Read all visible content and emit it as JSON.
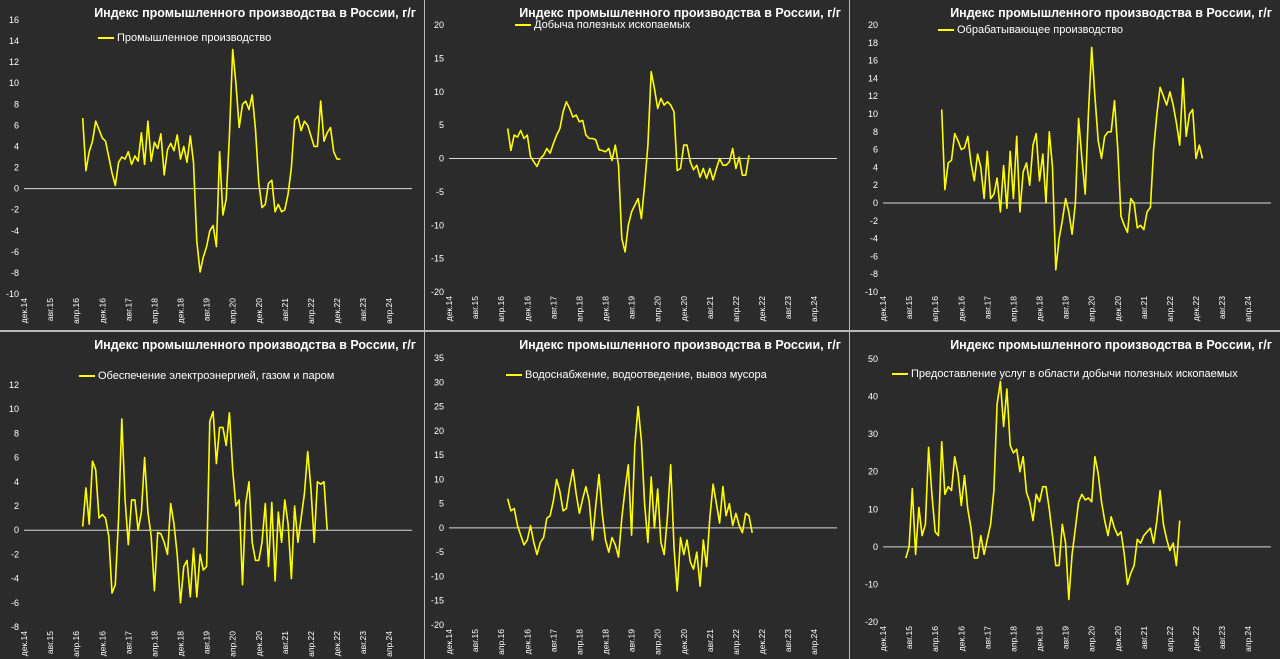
{
  "chart_data": [
    {
      "type": "line",
      "title": "Индекс промышленного производства в России, г/г",
      "x_tick_labels": [
        "дек.14",
        "авг.15",
        "апр.16",
        "дек.16",
        "авг.17",
        "апр.18",
        "дек.18",
        "авг.19",
        "апр.20",
        "дек.20",
        "авг.21",
        "апр.22",
        "дек.22",
        "авг.23",
        "апр.24"
      ],
      "x_range": [
        "2014-12",
        "2024-11"
      ],
      "ylim": [
        -10,
        16
      ],
      "ystep": 2,
      "grid": false,
      "legend": "top-left",
      "series": [
        {
          "name": "Промышленное производство",
          "color": "#ffff00",
          "x_start": "2016-06",
          "values": [
            6.7,
            1.7,
            3.5,
            4.5,
            6.4,
            5.6,
            4.8,
            4.5,
            3,
            1.5,
            0.3,
            2.5,
            3,
            2.8,
            3.5,
            2.3,
            3.1,
            2.6,
            5.3,
            2.3,
            6.4,
            2.6,
            4.4,
            3.8,
            5.2,
            1.3,
            3.7,
            4.3,
            3.6,
            5.1,
            2.8,
            4.0,
            2.5,
            5.0,
            2.5,
            -5,
            -7.9,
            -6.5,
            -5.5,
            -4.0,
            -3.5,
            -5.5,
            3.5,
            -2.5,
            -1,
            5,
            13.2,
            10,
            5.8,
            8,
            8.3,
            7.5,
            8.9,
            5.6,
            0.5,
            -1.8,
            -1.5,
            0.5,
            0.8,
            -2.2,
            -1.5,
            -2.2,
            -2,
            -0.5,
            2,
            6.5,
            6.9,
            5.5,
            6.4,
            6.0,
            5.0,
            4.0,
            4.0,
            8.3,
            4.5,
            5.3,
            5.8,
            3.5,
            2.8,
            2.8
          ]
        }
      ]
    },
    {
      "type": "line",
      "title": "Индекс промышленного производства в России, г/г",
      "x_tick_labels": [
        "дек.14",
        "авг.15",
        "апр.16",
        "дек.16",
        "авг.17",
        "апр.18",
        "дек.18",
        "авг.19",
        "апр.20",
        "дек.20",
        "авг.21",
        "апр.22",
        "дек.22",
        "авг.23",
        "апр.24"
      ],
      "x_range": [
        "2014-12",
        "2024-11"
      ],
      "ylim": [
        -20,
        20
      ],
      "ystep": 5,
      "grid": false,
      "legend": "top-left",
      "series": [
        {
          "name": "Добыча полезных ископаемых",
          "color": "#ffff00",
          "x_start": "2016-06",
          "values": [
            4.5,
            1.2,
            3.5,
            3.2,
            4.2,
            3.0,
            3.5,
            0.3,
            -0.5,
            -1.2,
            0,
            0.5,
            1.5,
            0.8,
            2.2,
            3.5,
            4.5,
            7,
            8.5,
            7.5,
            6.2,
            6.5,
            5.5,
            5.7,
            3.5,
            3.0,
            3.0,
            2.8,
            1.3,
            1.2,
            1.0,
            1.5,
            -0.3,
            2.0,
            -1,
            -12,
            -14,
            -10,
            -8,
            -7,
            -6,
            -9,
            -4,
            2,
            13,
            10.5,
            7.5,
            9,
            8,
            8.5,
            8,
            7,
            -1.8,
            -1.5,
            2,
            2,
            -0.5,
            -1.7,
            -1,
            -2.8,
            -1.5,
            -3,
            -1.5,
            -3.2,
            -1.5,
            0,
            -1,
            -1,
            -0.5,
            1.5,
            -1.5,
            0.2,
            -2.5,
            -2.5,
            0.5
          ]
        }
      ]
    },
    {
      "type": "line",
      "title": "Индекс промышленного производства в России, г/г",
      "x_tick_labels": [
        "дек.14",
        "авг.15",
        "апр.16",
        "дек.16",
        "авг.17",
        "апр.18",
        "дек.18",
        "авг.19",
        "апр.20",
        "дек.20",
        "авг.21",
        "апр.22",
        "дек.22",
        "авг.23",
        "апр.24"
      ],
      "x_range": [
        "2014-12",
        "2024-11"
      ],
      "ylim": [
        -10,
        20
      ],
      "ystep": 2,
      "grid": false,
      "legend": "top-left",
      "series": [
        {
          "name": "Обрабатывающее производство",
          "color": "#ffff00",
          "x_start": "2016-06",
          "values": [
            10.5,
            1.5,
            4.5,
            4.8,
            7.8,
            7.0,
            6.0,
            6.2,
            7.5,
            4.5,
            2.5,
            5.5,
            4,
            0.5,
            5.8,
            0.5,
            1.0,
            2.8,
            -1.0,
            4.2,
            -0.6,
            5.8,
            0.5,
            7.5,
            -1.0,
            3.5,
            4.5,
            2.0,
            6.5,
            7.8,
            2.5,
            5.5,
            0,
            8,
            4,
            -7.5,
            -4,
            -2,
            0.5,
            -1,
            -3.5,
            0,
            9.5,
            5,
            1,
            10,
            17.5,
            12,
            7,
            5,
            7.5,
            8,
            8,
            11.5,
            6,
            -1.5,
            -2.5,
            -3.3,
            0.5,
            0,
            -2.8,
            -2.5,
            -3,
            -1,
            -0.5,
            6,
            10,
            13,
            12,
            11,
            12.5,
            11,
            9,
            6.5,
            14,
            7.5,
            10,
            10.5,
            5,
            6.5,
            5
          ]
        }
      ]
    },
    {
      "type": "line",
      "title": "Индекс промышленного производства в России, г/г",
      "x_tick_labels": [
        "дек.14",
        "авг.15",
        "апр.16",
        "дек.16",
        "авг.17",
        "апр.18",
        "дек.18",
        "авг.19",
        "апр.20",
        "дек.20",
        "авг.21",
        "апр.22",
        "дек.22",
        "авг.23",
        "апр.24"
      ],
      "x_range": [
        "2014-12",
        "2024-11"
      ],
      "ylim": [
        -8,
        12
      ],
      "ystep": 2,
      "grid": false,
      "legend": "top-left",
      "series": [
        {
          "name": "Обеспечение электроэнергией, газом и паром",
          "color": "#ffff00",
          "x_start": "2016-06",
          "values": [
            0.3,
            3.5,
            0.5,
            5.7,
            5.0,
            1.0,
            1.3,
            1.0,
            -0.5,
            -5.2,
            -4.5,
            1,
            9.2,
            2.5,
            -1.2,
            2.5,
            2.5,
            0,
            1.5,
            6,
            1.5,
            -0.5,
            -5,
            -0.2,
            -0.3,
            -1.0,
            -2.0,
            2.2,
            0.5,
            -2,
            -6,
            -3,
            -2.5,
            -5.5,
            -1.5,
            -5.5,
            -2,
            -3.3,
            -3,
            9,
            9.8,
            5.5,
            8.5,
            8.5,
            7,
            9.7,
            5,
            2,
            2.5,
            -4.5,
            2.2,
            4,
            -1,
            -2.5,
            -2.5,
            -1,
            2.2,
            -3,
            2.3,
            -4.2,
            1.5,
            -1,
            2.5,
            0.5,
            -4,
            2,
            -1,
            1,
            3,
            6.5,
            3.5,
            -1,
            4,
            3.8,
            4,
            0
          ]
        }
      ]
    },
    {
      "type": "line",
      "title": "Индекс промышленного производства в России, г/г",
      "x_tick_labels": [
        "дек.14",
        "авг.15",
        "апр.16",
        "дек.16",
        "авг.17",
        "апр.18",
        "дек.18",
        "авг.19",
        "апр.20",
        "дек.20",
        "авг.21",
        "апр.22",
        "дек.22",
        "авг.23",
        "апр.24"
      ],
      "x_range": [
        "2014-12",
        "2024-11"
      ],
      "ylim": [
        -20,
        35
      ],
      "ystep": 5,
      "grid": false,
      "legend": "top-left",
      "series": [
        {
          "name": "Водоснабжение, водоотведение, вывоз мусора",
          "color": "#ffff00",
          "x_start": "2016-06",
          "values": [
            6,
            3.5,
            4,
            0.5,
            -1.5,
            -3.5,
            -2.5,
            0.5,
            -3,
            -5.5,
            -3,
            -2,
            2,
            2.5,
            5.5,
            10,
            7.5,
            3.5,
            4,
            8.5,
            12,
            7,
            3,
            6,
            8.5,
            5.5,
            -2.5,
            4.5,
            11,
            3,
            -2.5,
            -5,
            -2,
            -3.5,
            -6,
            2,
            8,
            13,
            -1.5,
            17,
            25,
            18,
            5,
            -3,
            10.5,
            0,
            8,
            -3,
            -5.5,
            2.5,
            13,
            -4,
            -13,
            -2,
            -5.5,
            -2.5,
            -7,
            -8.5,
            -5,
            -12,
            -2.5,
            -8,
            2,
            9,
            5,
            1,
            8.5,
            2.5,
            5,
            0.5,
            3,
            0.5,
            -1,
            3,
            2.5,
            -1
          ]
        }
      ]
    },
    {
      "type": "line",
      "title": "Индекс промышленного производства в России, г/г",
      "x_tick_labels": [
        "дек.14",
        "авг.15",
        "апр.16",
        "дек.16",
        "авг.17",
        "апр.18",
        "дек.18",
        "авг.19",
        "апр.20",
        "дек.20",
        "авг.21",
        "апр.22",
        "дек.22",
        "авг.23",
        "апр.24"
      ],
      "x_range": [
        "2014-12",
        "2024-11"
      ],
      "ylim": [
        -20,
        50
      ],
      "ystep": 10,
      "grid": false,
      "legend": "top-left",
      "series": [
        {
          "name": "Предоставление услуг в области добычи полезных ископаемых",
          "color": "#ffff00",
          "x_start": "2015-07",
          "values": [
            -3,
            0,
            15.5,
            -2,
            10.5,
            3,
            6,
            26.5,
            14,
            4,
            3,
            28,
            14,
            16,
            15,
            24,
            19.5,
            11,
            19,
            10,
            5,
            -3,
            -3,
            3,
            -2,
            2,
            6,
            15,
            38,
            44,
            32,
            42,
            27,
            25,
            26,
            20,
            24,
            14.5,
            12,
            7,
            14,
            12,
            16,
            16,
            10,
            3,
            -5,
            -5,
            6,
            1,
            -14,
            -2,
            5,
            12,
            14,
            12.5,
            13,
            12,
            24,
            19.5,
            12,
            7,
            3,
            8,
            5,
            3,
            4,
            -2,
            -10,
            -7,
            -5,
            2,
            1,
            3,
            4,
            5,
            1,
            7,
            15,
            6,
            2,
            -1,
            1,
            -5,
            7
          ]
        }
      ]
    }
  ]
}
